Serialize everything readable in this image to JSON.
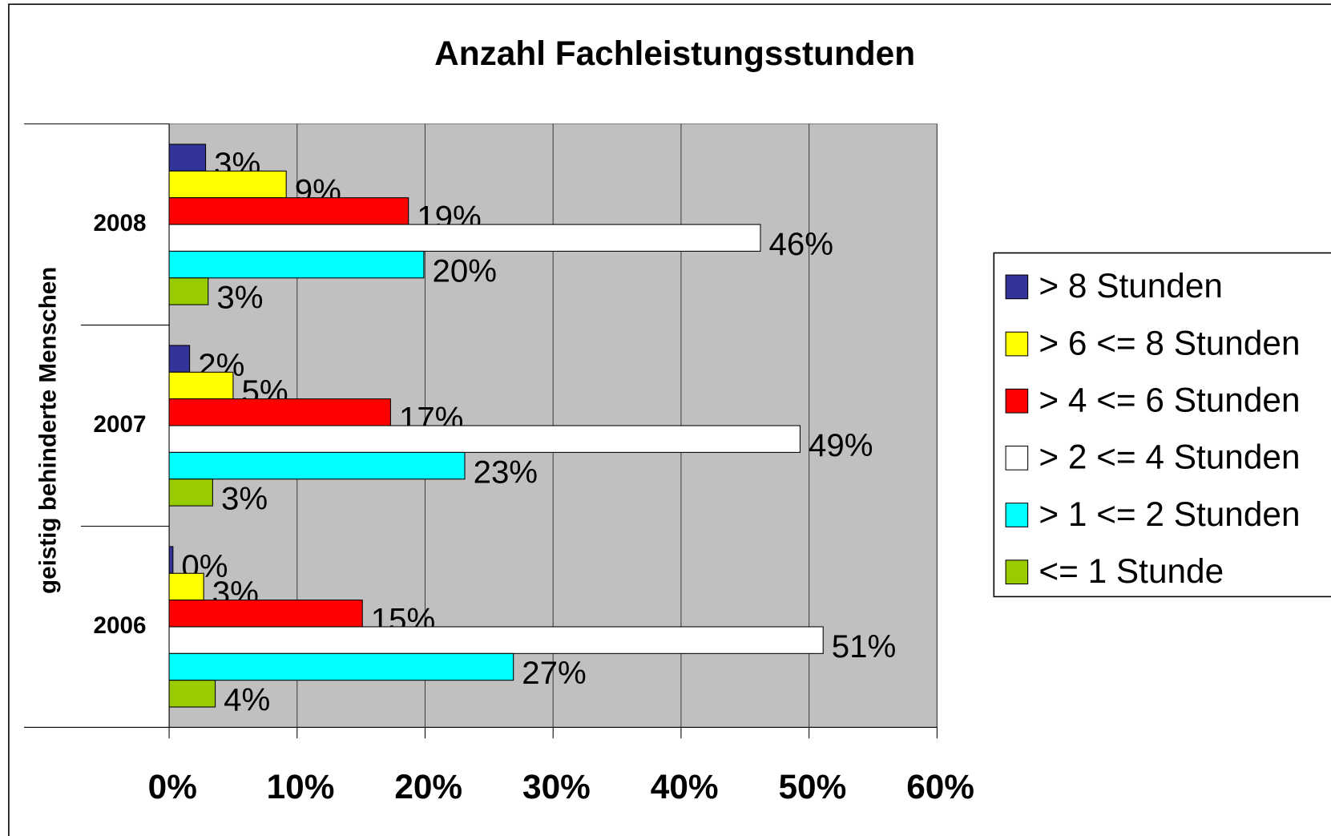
{
  "chart_data": {
    "type": "hbar",
    "title": "Anzahl Fachleistungsstunden",
    "y_label": "geistig behinderte Menschen",
    "categories": [
      "2008",
      "2007",
      "2006"
    ],
    "series": [
      {
        "name": "> 8 Stunden",
        "color": "#333399",
        "values": [
          2.85,
          1.6,
          0.3
        ],
        "value_labels": [
          "3%",
          "2%",
          "0%"
        ]
      },
      {
        "name": "> 6 <= 8 Stunden",
        "color": "#ffff00",
        "values": [
          9.15,
          5.0,
          2.7
        ],
        "value_labels": [
          "9%",
          "5%",
          "3%"
        ]
      },
      {
        "name": "> 4 <= 6 Stunden",
        "color": "#ff0000",
        "values": [
          18.7,
          17.3,
          15.1
        ],
        "value_labels": [
          "19%",
          "17%",
          "15%"
        ]
      },
      {
        "name": "> 2 <= 4 Stunden",
        "color": "#ffffff",
        "values": [
          46.2,
          49.3,
          51.1
        ],
        "value_labels": [
          "46%",
          "49%",
          "51%"
        ]
      },
      {
        "name": "> 1 <= 2 Stunden",
        "color": "#00ffff",
        "values": [
          19.9,
          23.1,
          26.9
        ],
        "value_labels": [
          "20%",
          "23%",
          "27%"
        ]
      },
      {
        "name": "<= 1 Stunde",
        "color": "#99cc00",
        "values": [
          3.05,
          3.4,
          3.6
        ],
        "value_labels": [
          "3%",
          "3%",
          "4%"
        ]
      }
    ],
    "xlim": [
      0,
      60
    ],
    "xticks": [
      {
        "value": 0,
        "label": "0%"
      },
      {
        "value": 10,
        "label": "10%"
      },
      {
        "value": 20,
        "label": "20%"
      },
      {
        "value": 30,
        "label": "30%"
      },
      {
        "value": 40,
        "label": "40%"
      },
      {
        "value": 50,
        "label": "50%"
      },
      {
        "value": 60,
        "label": "60%"
      }
    ],
    "grid": true,
    "legend": "right",
    "plot_background": "#c0c0c0"
  }
}
